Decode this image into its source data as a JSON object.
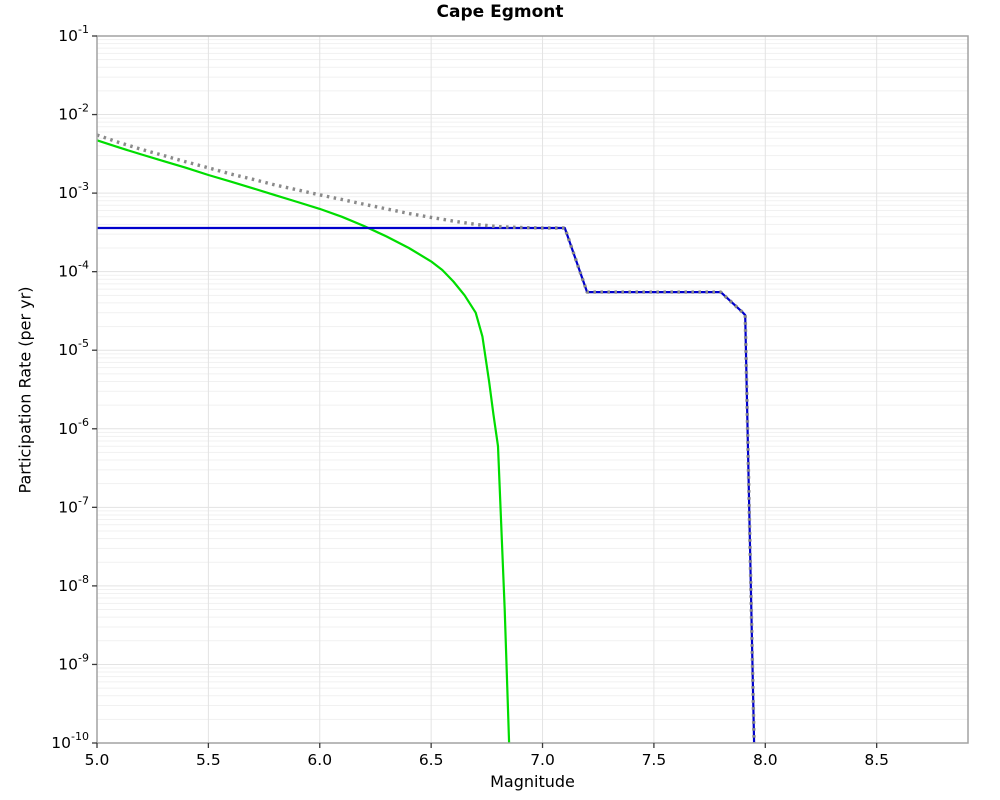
{
  "figure": {
    "title": "Cape Egmont",
    "xlabel": "Magnitude",
    "ylabel": "Participation Rate (per yr)"
  },
  "axes": {
    "x_ticks": [
      5.0,
      5.5,
      6.0,
      6.5,
      7.0,
      7.5,
      8.0,
      8.5
    ],
    "x_tick_decimals": 1,
    "y_tick_exponents": [
      -1,
      -2,
      -3,
      -4,
      -5,
      -6,
      -7,
      -8,
      -9,
      -10
    ],
    "x_grid_positions": [
      5.5,
      6.0,
      6.5,
      7.0,
      7.5,
      8.0,
      8.5
    ]
  },
  "colors": {
    "green_line": "#00dd00",
    "blue_line": "#0000cc",
    "dotted_line": "#8a8a8a",
    "grid_major": "#e3e3e3",
    "grid_minor": "#f1f1f1",
    "spine": "#a2a2a2",
    "tick": "#3a3a3a",
    "text": "#000000"
  },
  "chart_data": {
    "type": "line",
    "title": "Cape Egmont",
    "xlabel": "Magnitude",
    "ylabel": "Participation Rate (per yr)",
    "xlim": [
      5.0,
      8.91
    ],
    "ylim": [
      1e-10,
      0.1
    ],
    "yscale": "log",
    "grid": true,
    "legend": "none",
    "series": [
      {
        "name": "green-solid-curve",
        "color": "#00dd00",
        "line_style": "solid",
        "line_width": 2.2,
        "points": [
          [
            5.0,
            0.0047
          ],
          [
            5.1,
            0.0038
          ],
          [
            5.2,
            0.0031
          ],
          [
            5.3,
            0.00255
          ],
          [
            5.4,
            0.0021
          ],
          [
            5.5,
            0.0017
          ],
          [
            5.6,
            0.0014
          ],
          [
            5.7,
            0.00115
          ],
          [
            5.8,
            0.00094
          ],
          [
            5.9,
            0.00077
          ],
          [
            6.0,
            0.00063
          ],
          [
            6.1,
            0.0005
          ],
          [
            6.2,
            0.00038
          ],
          [
            6.3,
            0.00028
          ],
          [
            6.4,
            0.0002
          ],
          [
            6.5,
            0.000135
          ],
          [
            6.55,
            0.000105
          ],
          [
            6.6,
            7.5e-05
          ],
          [
            6.65,
            5e-05
          ],
          [
            6.7,
            3e-05
          ],
          [
            6.73,
            1.5e-05
          ],
          [
            6.76,
            4e-06
          ],
          [
            6.78,
            1.5e-06
          ],
          [
            6.8,
            6e-07
          ],
          [
            6.83,
            5e-09
          ],
          [
            6.85,
            1e-10
          ]
        ]
      },
      {
        "name": "blue-solid-curve",
        "color": "#0000cc",
        "line_style": "solid",
        "line_width": 2.2,
        "points": [
          [
            5.0,
            0.00036
          ],
          [
            7.1,
            0.00036
          ],
          [
            7.2,
            5.5e-05
          ],
          [
            7.8,
            5.5e-05
          ],
          [
            7.9,
            3e-05
          ],
          [
            7.91,
            2.8e-05
          ],
          [
            7.95,
            1e-10
          ]
        ]
      },
      {
        "name": "gray-dotted-curve",
        "color": "#8a8a8a",
        "line_style": "dotted",
        "line_width": 3.4,
        "points": [
          [
            5.0,
            0.0055
          ],
          [
            5.1,
            0.0044
          ],
          [
            5.2,
            0.0036
          ],
          [
            5.3,
            0.003
          ],
          [
            5.4,
            0.0025
          ],
          [
            5.5,
            0.0021
          ],
          [
            5.6,
            0.00175
          ],
          [
            5.7,
            0.0015
          ],
          [
            5.8,
            0.00127
          ],
          [
            5.9,
            0.0011
          ],
          [
            6.0,
            0.00095
          ],
          [
            6.1,
            0.00083
          ],
          [
            6.2,
            0.00072
          ],
          [
            6.3,
            0.00063
          ],
          [
            6.4,
            0.00055
          ],
          [
            6.5,
            0.00049
          ],
          [
            6.6,
            0.00044
          ],
          [
            6.7,
            0.0004
          ],
          [
            6.8,
            0.000375
          ],
          [
            6.9,
            0.000365
          ],
          [
            7.0,
            0.00036
          ],
          [
            7.1,
            0.00036
          ],
          [
            7.2,
            5.5e-05
          ],
          [
            7.8,
            5.5e-05
          ],
          [
            7.9,
            3e-05
          ],
          [
            7.91,
            2.8e-05
          ],
          [
            7.95,
            1e-10
          ]
        ]
      }
    ]
  }
}
